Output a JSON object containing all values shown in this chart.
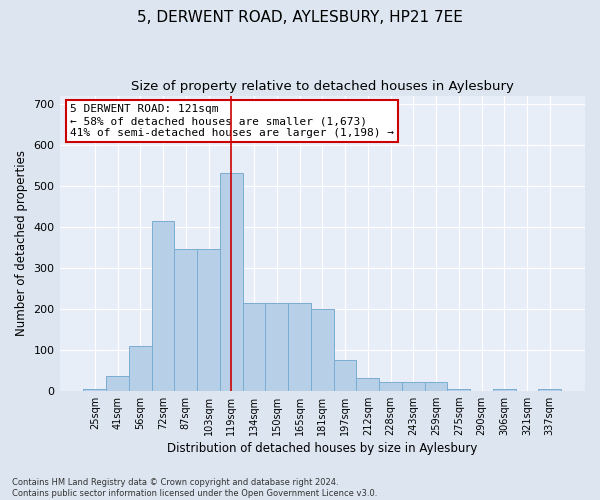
{
  "title": "5, DERWENT ROAD, AYLESBURY, HP21 7EE",
  "subtitle": "Size of property relative to detached houses in Aylesbury",
  "xlabel": "Distribution of detached houses by size in Aylesbury",
  "ylabel": "Number of detached properties",
  "categories": [
    "25sqm",
    "41sqm",
    "56sqm",
    "72sqm",
    "87sqm",
    "103sqm",
    "119sqm",
    "134sqm",
    "150sqm",
    "165sqm",
    "181sqm",
    "197sqm",
    "212sqm",
    "228sqm",
    "243sqm",
    "259sqm",
    "275sqm",
    "290sqm",
    "306sqm",
    "321sqm",
    "337sqm"
  ],
  "values": [
    5,
    35,
    110,
    415,
    345,
    345,
    530,
    215,
    215,
    215,
    200,
    75,
    30,
    22,
    20,
    20,
    5,
    0,
    5,
    0,
    5
  ],
  "bar_color": "#b8cfe8",
  "bar_edge_color": "#7aadd4",
  "vline_x": 6,
  "vline_color": "#cc0000",
  "annotation_text": "5 DERWENT ROAD: 121sqm\n← 58% of detached houses are smaller (1,673)\n41% of semi-detached houses are larger (1,198) →",
  "annotation_box_color": "#ffffff",
  "annotation_box_edge_color": "#cc0000",
  "ylim": [
    0,
    720
  ],
  "yticks": [
    0,
    100,
    200,
    300,
    400,
    500,
    600,
    700
  ],
  "background_color": "#dde6f0",
  "plot_bg_color": "#e8eef8",
  "grid_color": "#ffffff",
  "title_fontsize": 11,
  "subtitle_fontsize": 9.5,
  "footnote": "Contains HM Land Registry data © Crown copyright and database right 2024.\nContains public sector information licensed under the Open Government Licence v3.0."
}
